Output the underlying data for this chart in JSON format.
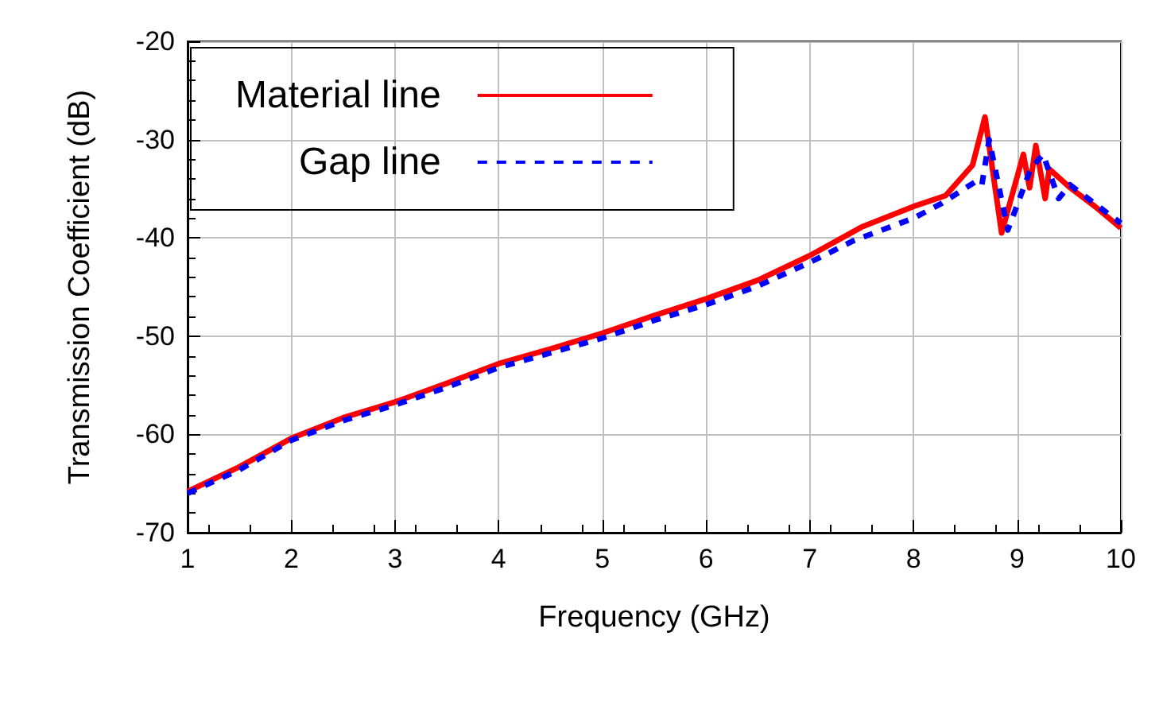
{
  "chart_data": {
    "type": "line",
    "xlabel": "Frequency (GHz)",
    "ylabel": "Transmission Coefficient (dB)",
    "xlim": [
      1,
      10
    ],
    "ylim": [
      -70,
      -20
    ],
    "xticks": [
      1,
      2,
      3,
      4,
      5,
      6,
      7,
      8,
      9,
      10
    ],
    "yticks": [
      -70,
      -60,
      -50,
      -40,
      -30,
      -20
    ],
    "grid": true,
    "legend": "top left",
    "marker": "none",
    "series": [
      {
        "name": "Material line",
        "color": "#ff0000",
        "line_style": "solid",
        "x": [
          1,
          1.5,
          2,
          2.5,
          3,
          3.5,
          4,
          4.5,
          5,
          5.5,
          6,
          6.5,
          7,
          7.5,
          8,
          8.31,
          8.57,
          8.69,
          8.85,
          9.06,
          9.12,
          9.18,
          9.27,
          9.31,
          9.5,
          9.75,
          10
        ],
        "values": [
          -65.8,
          -63.3,
          -60.4,
          -58.3,
          -56.7,
          -54.8,
          -52.8,
          -51.3,
          -49.7,
          -47.9,
          -46.2,
          -44.3,
          -41.8,
          -38.9,
          -36.8,
          -35.7,
          -32.6,
          -27.7,
          -39.5,
          -31.5,
          -34.9,
          -30.6,
          -36,
          -33,
          -34.8,
          -36.8,
          -39
        ]
      },
      {
        "name": "Gap line",
        "color": "#0000ff",
        "line_style": "dashed",
        "x": [
          1,
          1.5,
          2,
          2.5,
          3,
          3.5,
          4,
          4.5,
          5,
          5.5,
          6,
          6.5,
          7,
          7.42,
          8,
          8.27,
          8.61,
          8.66,
          8.73,
          8.91,
          9.13,
          9.25,
          9.4,
          9.51,
          9.81,
          10
        ],
        "values": [
          -66,
          -63.6,
          -60.6,
          -58.6,
          -57,
          -55.2,
          -53.2,
          -51.7,
          -50.2,
          -48.4,
          -46.8,
          -44.9,
          -42.5,
          -40.3,
          -38,
          -36.5,
          -34.2,
          -34.6,
          -30,
          -39.2,
          -33,
          -31.5,
          -36,
          -34.6,
          -37,
          -38.5
        ]
      }
    ]
  }
}
